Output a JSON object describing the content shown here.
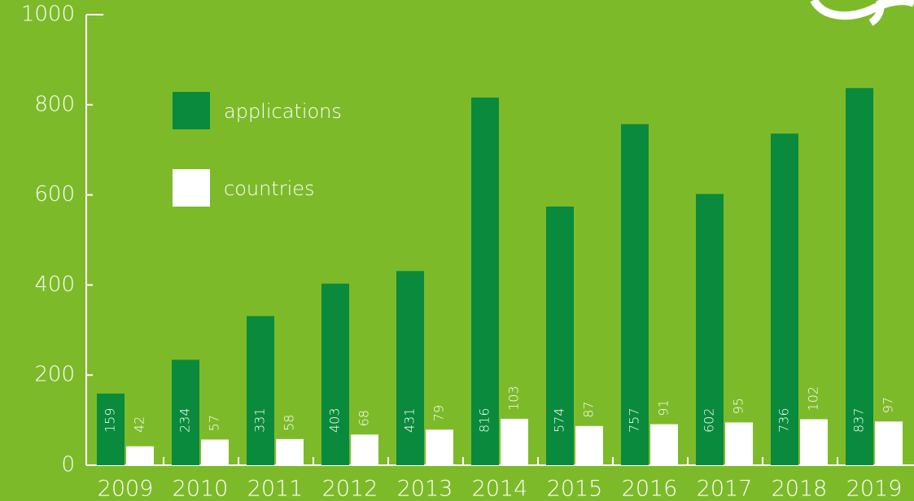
{
  "chart_data": {
    "type": "bar",
    "categories": [
      "2009",
      "2010",
      "2011",
      "2012",
      "2013",
      "2014",
      "2015",
      "2016",
      "2017",
      "2018",
      "2019"
    ],
    "series": [
      {
        "name": "applications",
        "color": "#0a8a3c",
        "values": [
          159,
          234,
          331,
          403,
          431,
          816,
          574,
          757,
          602,
          736,
          837
        ]
      },
      {
        "name": "countries",
        "color": "#ffffff",
        "values": [
          42,
          57,
          58,
          68,
          79,
          103,
          87,
          91,
          95,
          102,
          97
        ]
      }
    ],
    "ylim": [
      0,
      1000
    ],
    "yticks": [
      0,
      200,
      400,
      600,
      800,
      1000
    ]
  }
}
